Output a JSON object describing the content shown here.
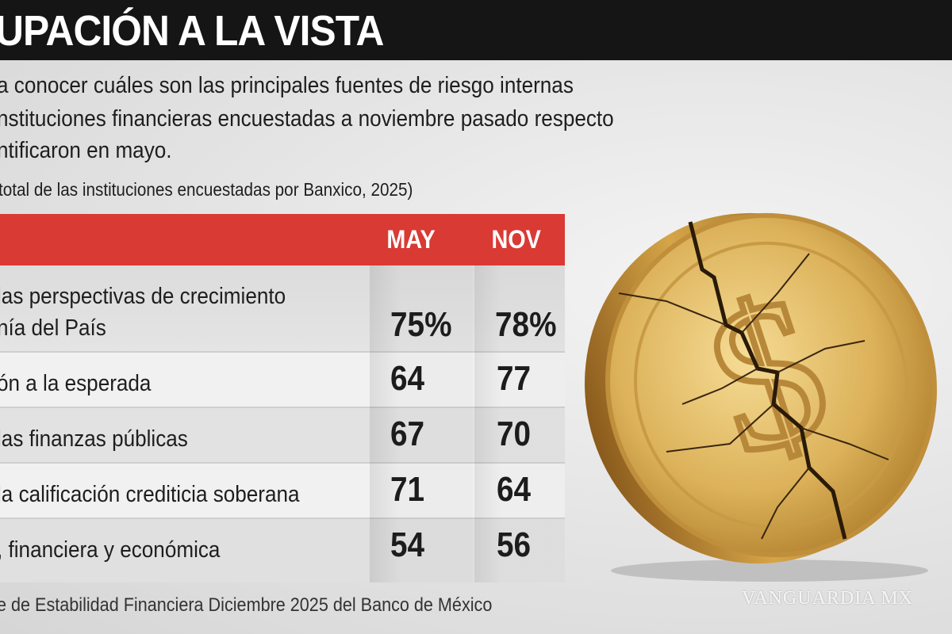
{
  "header": {
    "title": "UPACIÓN A LA VISTA"
  },
  "intro_lines": [
    "a conocer cuáles son las principales fuentes de riesgo internas",
    "nstituciones financieras encuestadas a noviembre pasado respecto",
    "ntificaron en mayo."
  ],
  "subtitle": "total de las instituciones encuestadas por Banxico, 2025)",
  "chart_data": {
    "type": "table",
    "columns": [
      "MAY",
      "NOV"
    ],
    "rows": [
      {
        "label_lines": [
          "las perspectivas de crecimiento",
          "nía del País"
        ],
        "may": "75%",
        "nov": "78%"
      },
      {
        "label_lines": [
          "ón a la esperada"
        ],
        "may": "64",
        "nov": "77"
      },
      {
        "label_lines": [
          "las finanzas públicas"
        ],
        "may": "67",
        "nov": "70"
      },
      {
        "label_lines": [
          "la calificación crediticia soberana"
        ],
        "may": "71",
        "nov": "64"
      },
      {
        "label_lines": [
          ", financiera y económica"
        ],
        "may": "54",
        "nov": "56"
      }
    ]
  },
  "footer": "e de Estabilidad Financiera Diciembre 2025 del Banco de México",
  "watermark": "VANGUARDIA MX",
  "colors": {
    "header_bg": "#151515",
    "table_header": "#d93a34",
    "coin": "#d4a645"
  }
}
